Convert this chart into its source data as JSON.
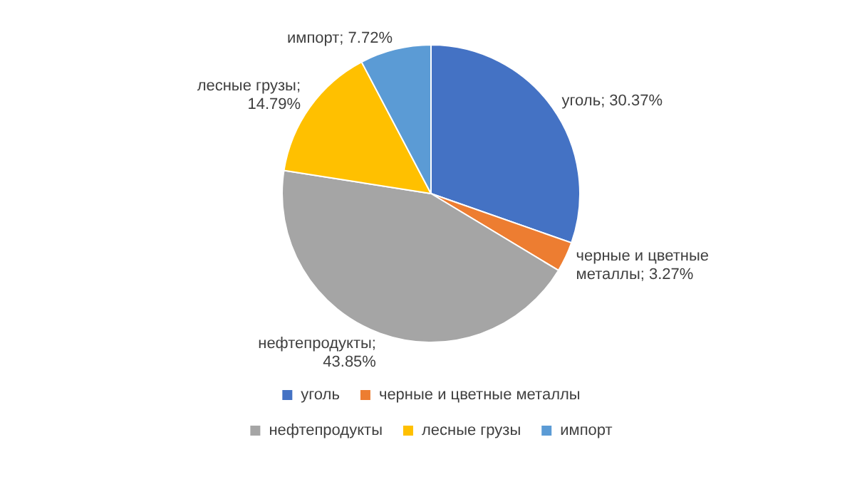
{
  "chart_data": {
    "type": "pie",
    "categories": [
      "уголь",
      "черные и цветные металлы",
      "нефтепродукты",
      "лесные грузы",
      "импорт"
    ],
    "values": [
      30.37,
      3.27,
      43.85,
      14.79,
      7.72
    ],
    "colors": [
      "#4472c4",
      "#ed7d31",
      "#a5a5a5",
      "#ffc000",
      "#5b9bd5"
    ],
    "value_labels": [
      "уголь; 30.37%",
      "черные и цветные металлы; 3.27%",
      "нефтепродукты; 43.85%",
      "лесные грузы; 14.79%",
      "импорт; 7.72%"
    ],
    "legend": "bottom"
  }
}
